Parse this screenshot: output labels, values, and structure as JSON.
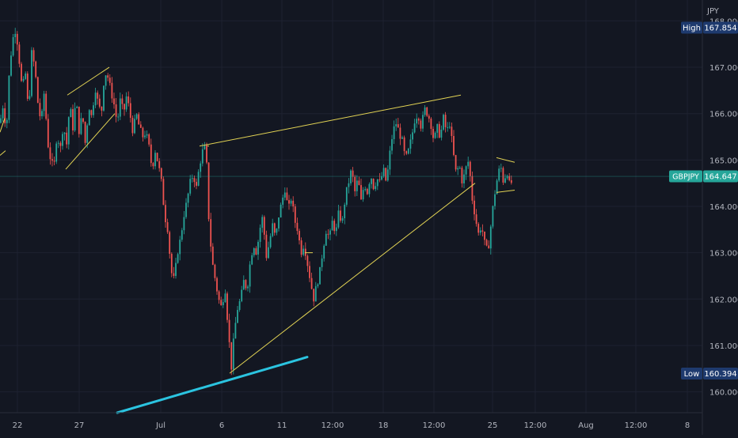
{
  "chart_data": {
    "type": "candlestick",
    "symbol": "GBPJPY",
    "currency": "JPY",
    "last_price": 164.647,
    "last_price_label": "164.647",
    "high": 167.854,
    "high_label": "167.854",
    "high_tag": "High",
    "low": 160.394,
    "low_label": "160.394",
    "low_tag": "Low",
    "ylim": [
      159.55,
      168.45
    ],
    "y_ticks": [
      {
        "value": 168.0,
        "label": "168.000"
      },
      {
        "value": 167.0,
        "label": "167.000"
      },
      {
        "value": 166.0,
        "label": "166.000"
      },
      {
        "value": 165.0,
        "label": "165.000"
      },
      {
        "value": 164.0,
        "label": "164.000"
      },
      {
        "value": 163.0,
        "label": "163.000"
      },
      {
        "value": 162.0,
        "label": "162.000"
      },
      {
        "value": 161.0,
        "label": "161.000"
      },
      {
        "value": 160.0,
        "label": "160.000"
      }
    ],
    "x_ticks": [
      "22",
      "27",
      "Jul",
      "6",
      "11",
      "12:00",
      "18",
      "12:00",
      "25",
      "12:00",
      "Aug",
      "12:00",
      "8"
    ],
    "grid": true,
    "colors": {
      "background": "#131722",
      "grid": "#1e2230",
      "up": "#26a69a",
      "down": "#ef5350",
      "trendline": "#e3d454",
      "support_line": "#2bc4e0",
      "price_tag": "#26a69a",
      "marker_tag": "#1e3a6e",
      "axis_text": "#b2b5be"
    },
    "price_path": [
      [
        0,
        165.8
      ],
      [
        4,
        166.2
      ],
      [
        8,
        165.6
      ],
      [
        12,
        167.0
      ],
      [
        16,
        167.6
      ],
      [
        20,
        167.85
      ],
      [
        24,
        167.2
      ],
      [
        28,
        166.5
      ],
      [
        32,
        166.9
      ],
      [
        36,
        166.0
      ],
      [
        40,
        167.3
      ],
      [
        44,
        167.0
      ],
      [
        48,
        166.2
      ],
      [
        52,
        165.8
      ],
      [
        56,
        166.5
      ],
      [
        60,
        165.4
      ],
      [
        64,
        165.0
      ],
      [
        68,
        164.8
      ],
      [
        72,
        165.6
      ],
      [
        76,
        165.2
      ],
      [
        80,
        165.8
      ],
      [
        84,
        165.3
      ],
      [
        88,
        166.2
      ],
      [
        92,
        165.7
      ],
      [
        96,
        166.3
      ],
      [
        100,
        165.6
      ],
      [
        104,
        166.0
      ],
      [
        108,
        165.3
      ],
      [
        112,
        166.2
      ],
      [
        116,
        165.9
      ],
      [
        120,
        166.6
      ],
      [
        124,
        166.2
      ],
      [
        128,
        166.0
      ],
      [
        132,
        166.9
      ],
      [
        136,
        166.8
      ],
      [
        140,
        166.5
      ],
      [
        144,
        166.2
      ],
      [
        148,
        165.8
      ],
      [
        152,
        166.3
      ],
      [
        156,
        166.0
      ],
      [
        160,
        166.4
      ],
      [
        164,
        166.0
      ],
      [
        168,
        165.6
      ],
      [
        172,
        166.0
      ],
      [
        176,
        165.7
      ],
      [
        180,
        165.5
      ],
      [
        184,
        165.6
      ],
      [
        188,
        165.3
      ],
      [
        192,
        164.8
      ],
      [
        196,
        165.2
      ],
      [
        200,
        164.9
      ],
      [
        204,
        164.5
      ],
      [
        208,
        163.8
      ],
      [
        212,
        163.5
      ],
      [
        216,
        162.6
      ],
      [
        220,
        162.4
      ],
      [
        224,
        163.0
      ],
      [
        228,
        163.3
      ],
      [
        232,
        163.8
      ],
      [
        236,
        164.1
      ],
      [
        240,
        164.5
      ],
      [
        244,
        164.7
      ],
      [
        248,
        164.4
      ],
      [
        252,
        164.9
      ],
      [
        256,
        165.2
      ],
      [
        260,
        165.3
      ],
      [
        264,
        163.6
      ],
      [
        268,
        162.8
      ],
      [
        272,
        162.4
      ],
      [
        276,
        162.0
      ],
      [
        280,
        161.8
      ],
      [
        284,
        162.3
      ],
      [
        288,
        161.4
      ],
      [
        292,
        160.5
      ],
      [
        296,
        161.3
      ],
      [
        300,
        161.8
      ],
      [
        304,
        162.0
      ],
      [
        308,
        162.4
      ],
      [
        312,
        162.2
      ],
      [
        316,
        162.8
      ],
      [
        320,
        163.2
      ],
      [
        324,
        163.0
      ],
      [
        328,
        163.5
      ],
      [
        332,
        163.8
      ],
      [
        336,
        162.9
      ],
      [
        340,
        163.2
      ],
      [
        344,
        163.6
      ],
      [
        348,
        163.3
      ],
      [
        352,
        163.8
      ],
      [
        356,
        164.1
      ],
      [
        360,
        164.4
      ],
      [
        364,
        163.9
      ],
      [
        368,
        164.2
      ],
      [
        372,
        163.7
      ],
      [
        376,
        163.5
      ],
      [
        380,
        163.0
      ],
      [
        384,
        163.2
      ],
      [
        388,
        162.8
      ],
      [
        392,
        162.4
      ],
      [
        396,
        162.0
      ],
      [
        400,
        162.3
      ],
      [
        404,
        162.6
      ],
      [
        408,
        163.1
      ],
      [
        412,
        163.5
      ],
      [
        416,
        163.3
      ],
      [
        420,
        163.7
      ],
      [
        424,
        163.4
      ],
      [
        428,
        163.9
      ],
      [
        432,
        163.6
      ],
      [
        436,
        164.2
      ],
      [
        440,
        164.5
      ],
      [
        444,
        164.8
      ],
      [
        448,
        164.3
      ],
      [
        452,
        164.6
      ],
      [
        456,
        164.1
      ],
      [
        460,
        164.5
      ],
      [
        464,
        164.3
      ],
      [
        468,
        164.7
      ],
      [
        472,
        164.4
      ],
      [
        476,
        164.6
      ],
      [
        480,
        164.5
      ],
      [
        484,
        164.8
      ],
      [
        488,
        164.5
      ],
      [
        492,
        165.1
      ],
      [
        496,
        165.6
      ],
      [
        500,
        165.8
      ],
      [
        504,
        165.6
      ],
      [
        508,
        165.4
      ],
      [
        512,
        165.0
      ],
      [
        516,
        165.2
      ],
      [
        520,
        165.5
      ],
      [
        524,
        165.9
      ],
      [
        528,
        166.0
      ],
      [
        532,
        165.7
      ],
      [
        536,
        166.1
      ],
      [
        540,
        166.0
      ],
      [
        544,
        165.8
      ],
      [
        548,
        165.4
      ],
      [
        552,
        165.7
      ],
      [
        556,
        165.5
      ],
      [
        560,
        165.9
      ],
      [
        564,
        165.6
      ],
      [
        568,
        165.8
      ],
      [
        572,
        165.2
      ],
      [
        576,
        164.7
      ],
      [
        580,
        164.9
      ],
      [
        584,
        164.5
      ],
      [
        588,
        164.8
      ],
      [
        592,
        165.0
      ],
      [
        596,
        164.2
      ],
      [
        600,
        163.8
      ],
      [
        604,
        163.4
      ],
      [
        608,
        163.6
      ],
      [
        612,
        163.2
      ],
      [
        616,
        163.0
      ],
      [
        620,
        163.6
      ],
      [
        624,
        164.2
      ],
      [
        628,
        164.6
      ],
      [
        632,
        164.9
      ],
      [
        636,
        164.5
      ],
      [
        640,
        164.8
      ],
      [
        644,
        164.4
      ],
      [
        648,
        164.647
      ]
    ],
    "trendlines": [
      {
        "x1": 0,
        "y1": 165.6,
        "x2": 6,
        "y2": 165.9
      },
      {
        "x1": 0,
        "y1": 165.1,
        "x2": 7,
        "y2": 165.2
      },
      {
        "x1": 85,
        "y1": 166.4,
        "x2": 138,
        "y2": 167.0
      },
      {
        "x1": 83,
        "y1": 164.8,
        "x2": 145,
        "y2": 166.0
      },
      {
        "x1": 252,
        "y1": 165.3,
        "x2": 582,
        "y2": 166.4
      },
      {
        "x1": 290,
        "y1": 160.4,
        "x2": 600,
        "y2": 164.5
      },
      {
        "x1": 627,
        "y1": 165.05,
        "x2": 650,
        "y2": 164.95
      },
      {
        "x1": 627,
        "y1": 164.3,
        "x2": 650,
        "y2": 164.35
      },
      {
        "x1": 262,
        "y1": 165.3,
        "x2": 264,
        "y2": 165.3
      },
      {
        "x1": 385,
        "y1": 163.0,
        "x2": 395,
        "y2": 163.0
      }
    ],
    "support_line": {
      "x1": 148,
      "y1": 159.55,
      "x2": 388,
      "y2": 160.75
    }
  }
}
